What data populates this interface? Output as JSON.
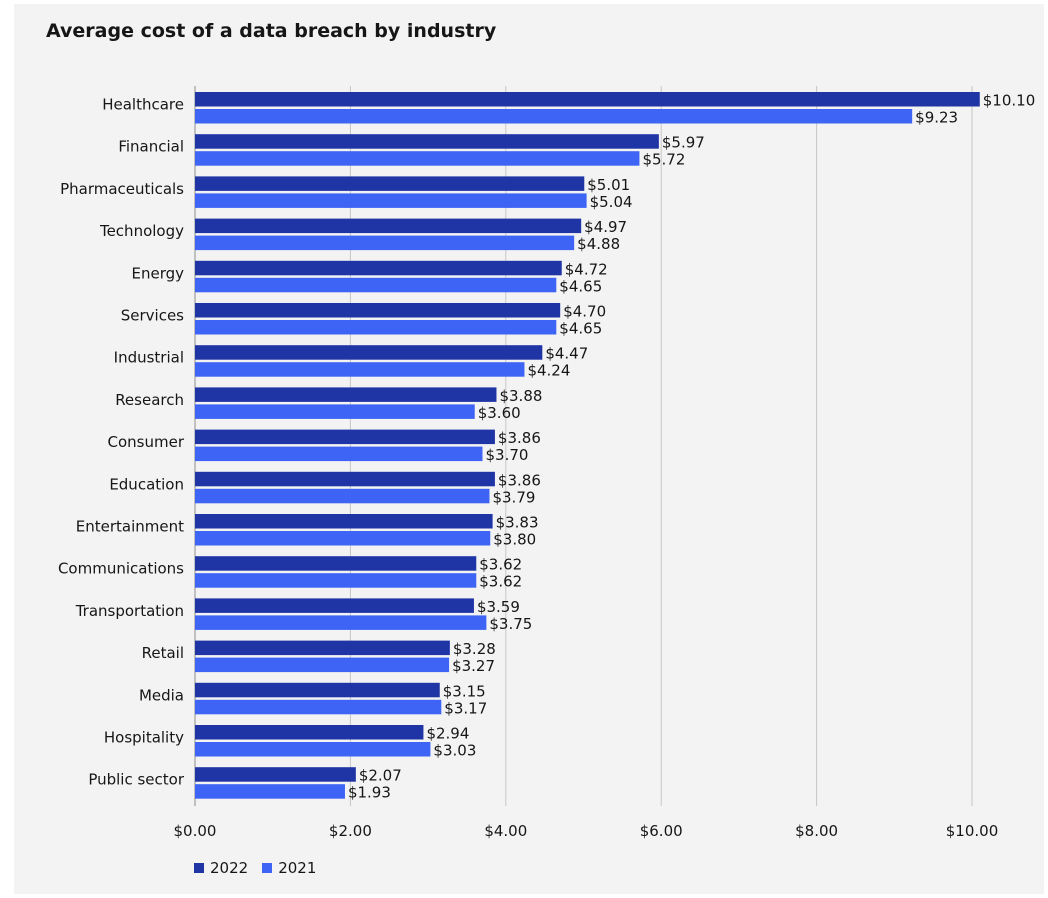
{
  "chart_data": {
    "type": "bar",
    "orientation": "horizontal",
    "title": "Average cost of a data breach by industry",
    "xlabel": "",
    "ylabel": "",
    "xlim": [
      0,
      10
    ],
    "grid": true,
    "legend_position": "bottom-left",
    "categories": [
      "Healthcare",
      "Financial",
      "Pharmaceuticals",
      "Technology",
      "Energy",
      "Services",
      "Industrial",
      "Research",
      "Consumer",
      "Education",
      "Entertainment",
      "Communications",
      "Transportation",
      "Retail",
      "Media",
      "Hospitality",
      "Public sector"
    ],
    "x_ticks": [
      0,
      2,
      4,
      6,
      8,
      10
    ],
    "x_tick_labels": [
      "$0.00",
      "$2.00",
      "$4.00",
      "$6.00",
      "$8.00",
      "$10.00"
    ],
    "series": [
      {
        "name": "2022",
        "color": "#1f35a6",
        "values": [
          10.1,
          5.97,
          5.01,
          4.97,
          4.72,
          4.7,
          4.47,
          3.88,
          3.86,
          3.86,
          3.83,
          3.62,
          3.59,
          3.28,
          3.15,
          2.94,
          2.07
        ],
        "value_labels": [
          "$10.10",
          "$5.97",
          "$5.01",
          "$4.97",
          "$4.72",
          "$4.70",
          "$4.47",
          "$3.88",
          "$3.86",
          "$3.86",
          "$3.83",
          "$3.62",
          "$3.59",
          "$3.28",
          "$3.15",
          "$2.94",
          "$2.07"
        ]
      },
      {
        "name": "2021",
        "color": "#3d64f5",
        "values": [
          9.23,
          5.72,
          5.04,
          4.88,
          4.65,
          4.65,
          4.24,
          3.6,
          3.7,
          3.79,
          3.8,
          3.62,
          3.75,
          3.27,
          3.17,
          3.03,
          1.93
        ],
        "value_labels": [
          "$9.23",
          "$5.72",
          "$5.04",
          "$4.88",
          "$4.65",
          "$4.65",
          "$4.24",
          "$3.60",
          "$3.70",
          "$3.79",
          "$3.80",
          "$3.62",
          "$3.75",
          "$3.27",
          "$3.17",
          "$3.03",
          "$1.93"
        ]
      }
    ]
  }
}
